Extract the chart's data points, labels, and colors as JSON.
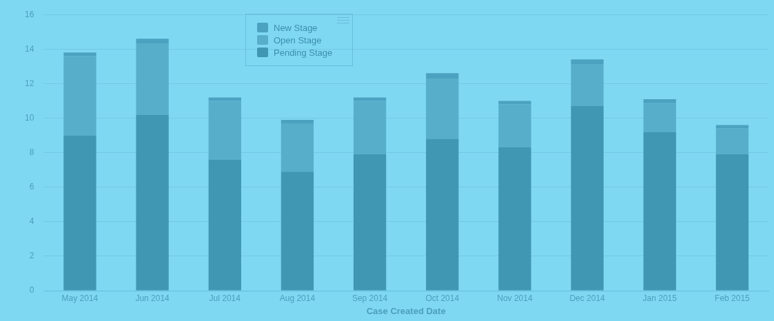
{
  "chart_data": {
    "type": "bar",
    "stacked": true,
    "xlabel": "Case Created Date",
    "categories": [
      "May 2014",
      "Jun 2014",
      "Jul 2014",
      "Aug 2014",
      "Sep 2014",
      "Oct 2014",
      "Nov 2014",
      "Dec 2014",
      "Jan 2015",
      "Feb 2015"
    ],
    "series": [
      {
        "name": "Pending Stage",
        "color": "#3f97b3",
        "values": [
          9,
          10.2,
          7.6,
          6.9,
          7.9,
          8.8,
          8.3,
          10.7,
          9.2,
          7.9
        ]
      },
      {
        "name": "Open Stage",
        "color": "#56aecb",
        "values": [
          4.6,
          4.1,
          3.4,
          2.8,
          3.1,
          3.5,
          2.5,
          2.4,
          1.7,
          1.5
        ]
      },
      {
        "name": "New Stage",
        "color": "#4aa2c0",
        "values": [
          0.2,
          0.3,
          0.2,
          0.2,
          0.2,
          0.3,
          0.2,
          0.3,
          0.2,
          0.2
        ]
      }
    ],
    "ylim": [
      0,
      16
    ],
    "yticks": [
      0,
      2,
      4,
      6,
      8,
      10,
      12,
      14,
      16
    ],
    "grid": "y",
    "legend": "top left"
  }
}
